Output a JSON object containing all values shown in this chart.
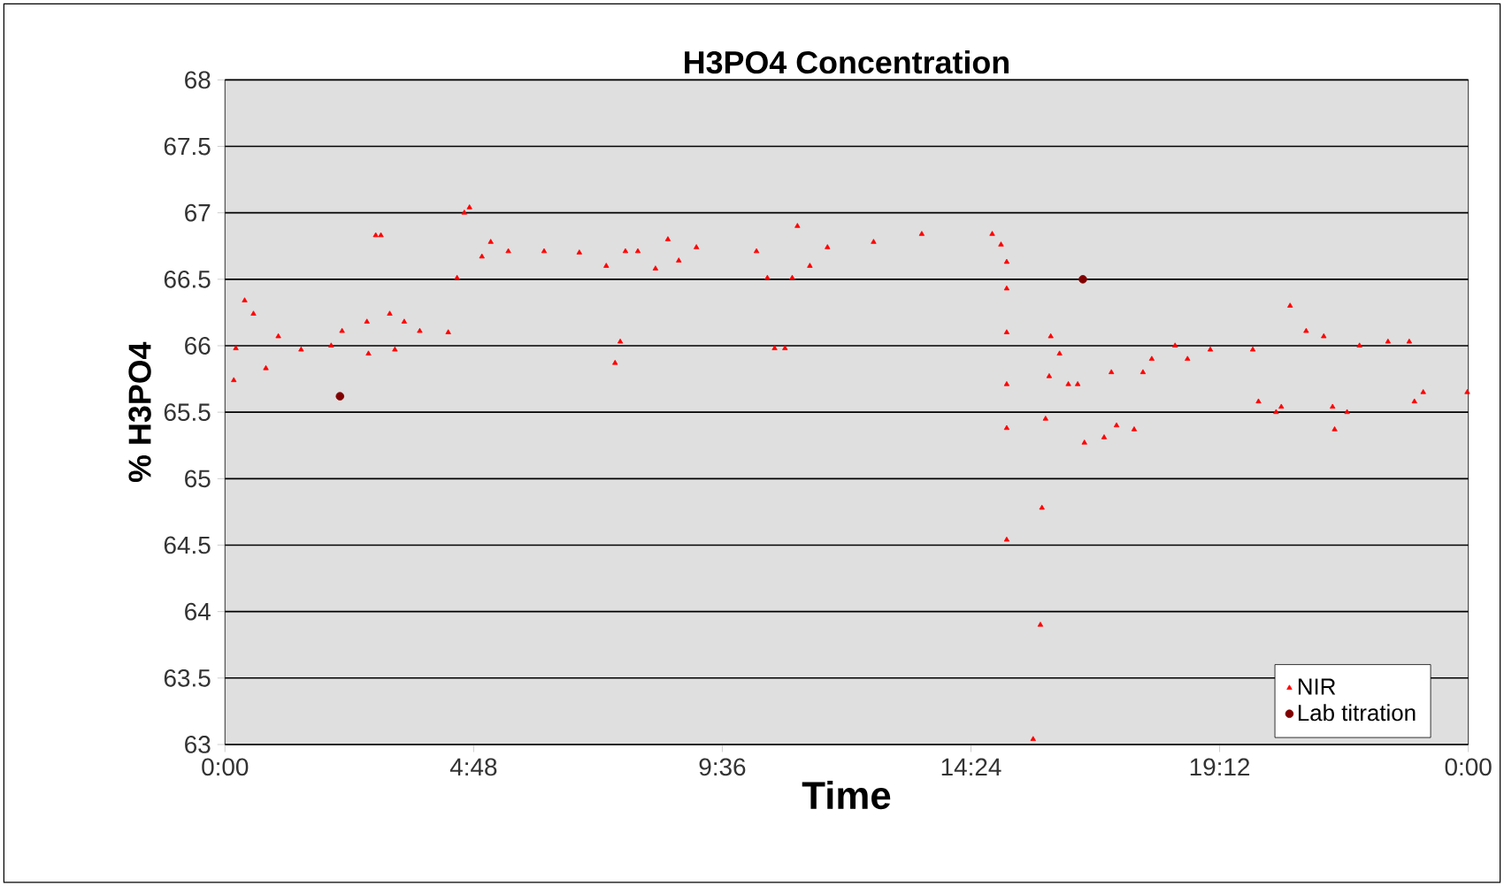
{
  "chart_data": {
    "type": "scatter",
    "title": "H3PO4  Concentration",
    "xlabel": "Time",
    "ylabel": "% H3PO4",
    "xlim": [
      0,
      24
    ],
    "ylim": [
      63,
      68
    ],
    "xticks": [
      {
        "value": 0,
        "label": "0:00"
      },
      {
        "value": 4.8,
        "label": "4:48"
      },
      {
        "value": 9.6,
        "label": "9:36"
      },
      {
        "value": 14.4,
        "label": "14:24"
      },
      {
        "value": 19.2,
        "label": "19:12"
      },
      {
        "value": 24,
        "label": "0:00"
      }
    ],
    "yticks": [
      63,
      63.5,
      64,
      64.5,
      65,
      65.5,
      66,
      66.5,
      67,
      67.5,
      68
    ],
    "grid": "y",
    "legend": "bottom right",
    "series": [
      {
        "name": "NIR",
        "color": "#ff0000",
        "marker": "triangle",
        "x": [
          0.17,
          0.21,
          0.38,
          0.55,
          0.79,
          1.03,
          1.47,
          2.05,
          2.26,
          2.74,
          2.77,
          2.91,
          3.01,
          3.18,
          3.28,
          3.46,
          3.76,
          4.31,
          4.48,
          4.62,
          4.72,
          4.96,
          5.13,
          5.47,
          6.16,
          6.84,
          7.36,
          7.53,
          7.63,
          7.73,
          7.97,
          8.31,
          8.55,
          8.76,
          9.1,
          10.26,
          10.47,
          10.61,
          10.81,
          10.95,
          11.05,
          11.29,
          11.63,
          12.52,
          13.45,
          14.81,
          14.98,
          15.09,
          15.09,
          15.09,
          15.09,
          15.09,
          15.09,
          15.6,
          15.74,
          15.77,
          15.84,
          15.91,
          15.94,
          16.11,
          16.28,
          16.46,
          16.59,
          16.97,
          17.11,
          17.21,
          17.55,
          17.72,
          17.89,
          18.34,
          18.58,
          19.02,
          19.84,
          19.95,
          20.29,
          20.39,
          20.56,
          20.87,
          21.21,
          21.38,
          21.42,
          21.66,
          21.9,
          22.45,
          22.86,
          22.96,
          23.13,
          23.98
        ],
        "values": [
          65.74,
          65.98,
          66.34,
          66.24,
          65.83,
          66.07,
          65.97,
          66.0,
          66.11,
          66.18,
          65.94,
          66.83,
          66.83,
          66.24,
          65.97,
          66.18,
          66.11,
          66.1,
          66.51,
          67.0,
          67.04,
          66.67,
          66.78,
          66.71,
          66.71,
          66.7,
          66.6,
          65.87,
          66.03,
          66.71,
          66.71,
          66.58,
          66.8,
          66.64,
          66.74,
          66.71,
          66.51,
          65.98,
          65.98,
          66.51,
          66.9,
          66.6,
          66.74,
          66.78,
          66.84,
          66.84,
          66.76,
          66.63,
          66.43,
          66.1,
          65.71,
          65.38,
          64.54,
          63.04,
          63.9,
          64.78,
          65.45,
          65.77,
          66.07,
          65.94,
          65.71,
          65.71,
          65.27,
          65.31,
          65.8,
          65.4,
          65.37,
          65.8,
          65.9,
          66.0,
          65.9,
          65.97,
          65.97,
          65.58,
          65.5,
          65.54,
          66.3,
          66.11,
          66.07,
          65.54,
          65.37,
          65.5,
          66.0,
          66.03,
          66.03,
          65.58,
          65.65,
          65.65
        ]
      },
      {
        "name": "Lab titration",
        "color": "#800000",
        "marker": "circle",
        "x": [
          2.22,
          16.56
        ],
        "values": [
          65.62,
          66.5
        ]
      }
    ]
  }
}
